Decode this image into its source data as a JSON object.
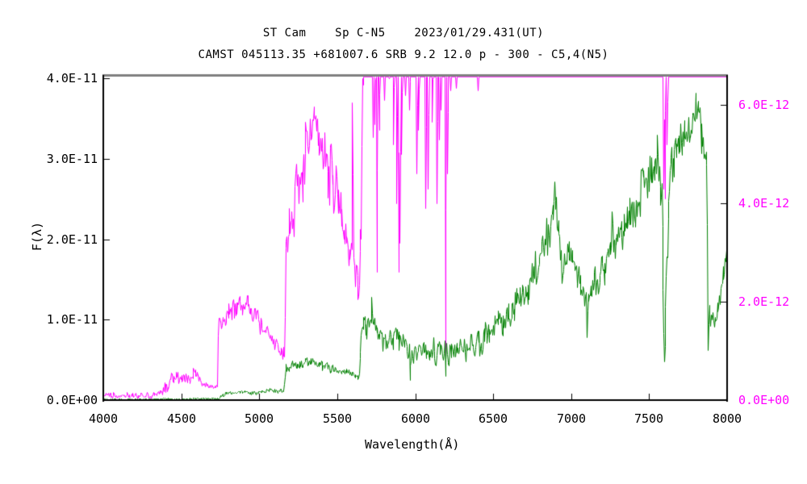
{
  "chart_data": {
    "type": "line",
    "title": "ST Cam    Sp C-N5    2023/01/29.431(UT)",
    "subtitle": "CAMST 045113.35 +681007.6 SRB 9.2 12.0 p - 300 - C5,4(N5)",
    "x_axis": {
      "label": "Wavelength(Å)",
      "min": 4000,
      "max": 8000,
      "tick_values": [
        4000,
        4500,
        5000,
        5500,
        6000,
        6500,
        7000,
        7500,
        8000
      ],
      "tick_labels": [
        "4000",
        "4500",
        "5000",
        "5500",
        "6000",
        "6500",
        "7000",
        "7500",
        "8000"
      ]
    },
    "left_axis": {
      "label": "F(λ)",
      "unit": "1e-11",
      "min": 0,
      "max": 4.04e-11,
      "tick_values": [
        0,
        1,
        2,
        3,
        4
      ],
      "tick_labels": [
        "0.0E+00",
        "1.0E-11",
        "2.0E-11",
        "3.0E-11",
        "4.0E-11"
      ],
      "color": "#000000",
      "series": "spectrum-green"
    },
    "right_axis": {
      "unit": "1e-12",
      "min": 0,
      "max": 6.6e-12,
      "tick_values": [
        0,
        2,
        4,
        6
      ],
      "tick_labels": [
        "0.0E+00",
        "2.0E-12",
        "4.0E-12",
        "6.0E-12"
      ],
      "color": "#ff00ff",
      "series": "spectrum-magenta"
    },
    "frame": {
      "top_border_color": "#808080",
      "axis_color": "#000000",
      "background": "#ffffff"
    },
    "series": [
      {
        "name": "spectrum-magenta",
        "color": "#ff00ff",
        "axis": "right",
        "value_unit": "1e-12",
        "clip_max": 6.57,
        "seed": 7,
        "envelope_points": [
          [
            4000,
            0.08,
            0.05
          ],
          [
            4340,
            0.1,
            0.06
          ],
          [
            4380,
            0.22,
            0.1
          ],
          [
            4430,
            0.42,
            0.12
          ],
          [
            4500,
            0.5,
            0.14
          ],
          [
            4560,
            0.52,
            0.15
          ],
          [
            4620,
            0.45,
            0.12
          ],
          [
            4650,
            0.3,
            0.06
          ],
          [
            4700,
            0.27,
            0.05
          ],
          [
            4733,
            0.3,
            0.05
          ],
          [
            4737,
            1.55,
            0.15
          ],
          [
            4780,
            1.75,
            0.18
          ],
          [
            4870,
            1.9,
            0.2
          ],
          [
            4930,
            1.95,
            0.22
          ],
          [
            5000,
            1.6,
            0.18
          ],
          [
            5060,
            1.3,
            0.15
          ],
          [
            5120,
            1.05,
            0.18
          ],
          [
            5162,
            0.95,
            0.2
          ],
          [
            5168,
            2.9,
            0.3
          ],
          [
            5200,
            3.6,
            0.5
          ],
          [
            5260,
            4.4,
            0.55
          ],
          [
            5320,
            5.5,
            0.4
          ],
          [
            5355,
            5.8,
            0.25
          ],
          [
            5390,
            5.3,
            0.45
          ],
          [
            5450,
            4.6,
            0.5
          ],
          [
            5520,
            4.0,
            0.5
          ],
          [
            5570,
            3.1,
            0.3
          ],
          [
            5590,
            3.0,
            0.35
          ],
          [
            5620,
            2.6,
            0.3
          ],
          [
            5640,
            2.3,
            0.25
          ],
          [
            5652,
            3.5,
            0.5
          ],
          [
            5658,
            6.9,
            0.5
          ],
          [
            5690,
            7.2,
            0.6
          ],
          [
            6240,
            7.4,
            0.6
          ],
          [
            6300,
            8.5,
            0.5
          ],
          [
            7560,
            8.5,
            0.5
          ],
          [
            7585,
            7.2,
            0.5
          ],
          [
            7595,
            6.8,
            0.4
          ],
          [
            7610,
            7.4,
            0.5
          ],
          [
            7640,
            8.5,
            0.5
          ],
          [
            8000,
            8.5,
            0.5
          ]
        ],
        "feature_spikes": [
          [
            5597,
            6.05
          ],
          [
            5633,
            2.05
          ],
          [
            5727,
            5.35
          ],
          [
            5739,
            5.6
          ],
          [
            5752,
            2.6
          ],
          [
            5766,
            5.5
          ],
          [
            5800,
            6.1
          ],
          [
            5860,
            5.2
          ],
          [
            5878,
            4.0
          ],
          [
            5890,
            2.6
          ],
          [
            5898,
            3.2
          ],
          [
            5912,
            5.0
          ],
          [
            5935,
            6.2
          ],
          [
            5960,
            5.9
          ],
          [
            6008,
            4.6
          ],
          [
            6020,
            5.5
          ],
          [
            6065,
            3.9
          ],
          [
            6080,
            4.3
          ],
          [
            6108,
            5.65
          ],
          [
            6135,
            4.0
          ],
          [
            6150,
            5.3
          ],
          [
            6165,
            5.9
          ],
          [
            6193,
            0.9
          ],
          [
            6205,
            4.6
          ],
          [
            6225,
            6.3
          ],
          [
            6260,
            6.35
          ],
          [
            6400,
            6.3
          ],
          [
            7592,
            4.3
          ],
          [
            7601,
            4.1
          ],
          [
            7612,
            5.2
          ]
        ]
      },
      {
        "name": "spectrum-green",
        "color": "#008000",
        "axis": "left",
        "value_unit": "1e-11",
        "clip_max": null,
        "seed": 31,
        "envelope_points": [
          [
            4000,
            0.012,
            0.008
          ],
          [
            4300,
            0.015,
            0.008
          ],
          [
            4500,
            0.02,
            0.01
          ],
          [
            4700,
            0.025,
            0.01
          ],
          [
            4735,
            0.03,
            0.01
          ],
          [
            4785,
            0.09,
            0.02
          ],
          [
            4900,
            0.1,
            0.025
          ],
          [
            5000,
            0.1,
            0.025
          ],
          [
            5080,
            0.12,
            0.03
          ],
          [
            5155,
            0.13,
            0.03
          ],
          [
            5170,
            0.4,
            0.05
          ],
          [
            5230,
            0.44,
            0.05
          ],
          [
            5300,
            0.47,
            0.05
          ],
          [
            5360,
            0.46,
            0.05
          ],
          [
            5430,
            0.42,
            0.05
          ],
          [
            5500,
            0.36,
            0.04
          ],
          [
            5560,
            0.34,
            0.04
          ],
          [
            5600,
            0.3,
            0.04
          ],
          [
            5635,
            0.28,
            0.04
          ],
          [
            5655,
            0.75,
            0.12
          ],
          [
            5680,
            0.95,
            0.15
          ],
          [
            5720,
            1.0,
            0.15
          ],
          [
            5760,
            0.85,
            0.14
          ],
          [
            5820,
            0.8,
            0.15
          ],
          [
            5880,
            0.75,
            0.15
          ],
          [
            5940,
            0.65,
            0.14
          ],
          [
            5990,
            0.55,
            0.12
          ],
          [
            6040,
            0.62,
            0.13
          ],
          [
            6090,
            0.6,
            0.14
          ],
          [
            6140,
            0.62,
            0.14
          ],
          [
            6200,
            0.63,
            0.15
          ],
          [
            6270,
            0.6,
            0.14
          ],
          [
            6330,
            0.62,
            0.14
          ],
          [
            6400,
            0.7,
            0.14
          ],
          [
            6460,
            0.8,
            0.15
          ],
          [
            6520,
            0.95,
            0.16
          ],
          [
            6580,
            1.05,
            0.16
          ],
          [
            6640,
            1.15,
            0.17
          ],
          [
            6700,
            1.35,
            0.18
          ],
          [
            6760,
            1.55,
            0.2
          ],
          [
            6820,
            1.85,
            0.22
          ],
          [
            6870,
            2.2,
            0.25
          ],
          [
            6900,
            2.35,
            0.22
          ],
          [
            6925,
            1.95,
            0.2
          ],
          [
            6960,
            1.7,
            0.18
          ],
          [
            7000,
            1.75,
            0.2
          ],
          [
            7040,
            1.55,
            0.18
          ],
          [
            7090,
            1.35,
            0.16
          ],
          [
            7130,
            1.45,
            0.18
          ],
          [
            7180,
            1.6,
            0.18
          ],
          [
            7240,
            1.75,
            0.2
          ],
          [
            7300,
            1.95,
            0.2
          ],
          [
            7360,
            2.2,
            0.22
          ],
          [
            7420,
            2.45,
            0.25
          ],
          [
            7470,
            2.6,
            0.25
          ],
          [
            7520,
            2.8,
            0.25
          ],
          [
            7560,
            2.95,
            0.22
          ],
          [
            7580,
            2.4,
            0.3
          ],
          [
            7594,
            0.55,
            0.1
          ],
          [
            7610,
            1.9,
            0.3
          ],
          [
            7640,
            2.9,
            0.3
          ],
          [
            7680,
            3.05,
            0.25
          ],
          [
            7720,
            3.2,
            0.22
          ],
          [
            7760,
            3.35,
            0.2
          ],
          [
            7800,
            3.45,
            0.22
          ],
          [
            7840,
            3.3,
            0.25
          ],
          [
            7866,
            3.0,
            0.2
          ],
          [
            7880,
            1.1,
            0.2
          ],
          [
            7900,
            1.0,
            0.15
          ],
          [
            7930,
            1.1,
            0.15
          ],
          [
            7960,
            1.3,
            0.15
          ],
          [
            7985,
            1.7,
            0.15
          ],
          [
            8000,
            1.8,
            0.1
          ]
        ],
        "feature_spikes": [
          [
            5720,
            1.28
          ],
          [
            5962,
            0.25
          ],
          [
            6193,
            0.3
          ],
          [
            6890,
            2.72
          ],
          [
            6940,
            1.45
          ],
          [
            7098,
            0.78
          ],
          [
            7260,
            2.35
          ],
          [
            7550,
            3.3
          ],
          [
            7595,
            0.48
          ],
          [
            7795,
            3.82
          ],
          [
            7812,
            3.72
          ],
          [
            7877,
            0.62
          ]
        ]
      }
    ],
    "grid": false,
    "legend": false
  }
}
